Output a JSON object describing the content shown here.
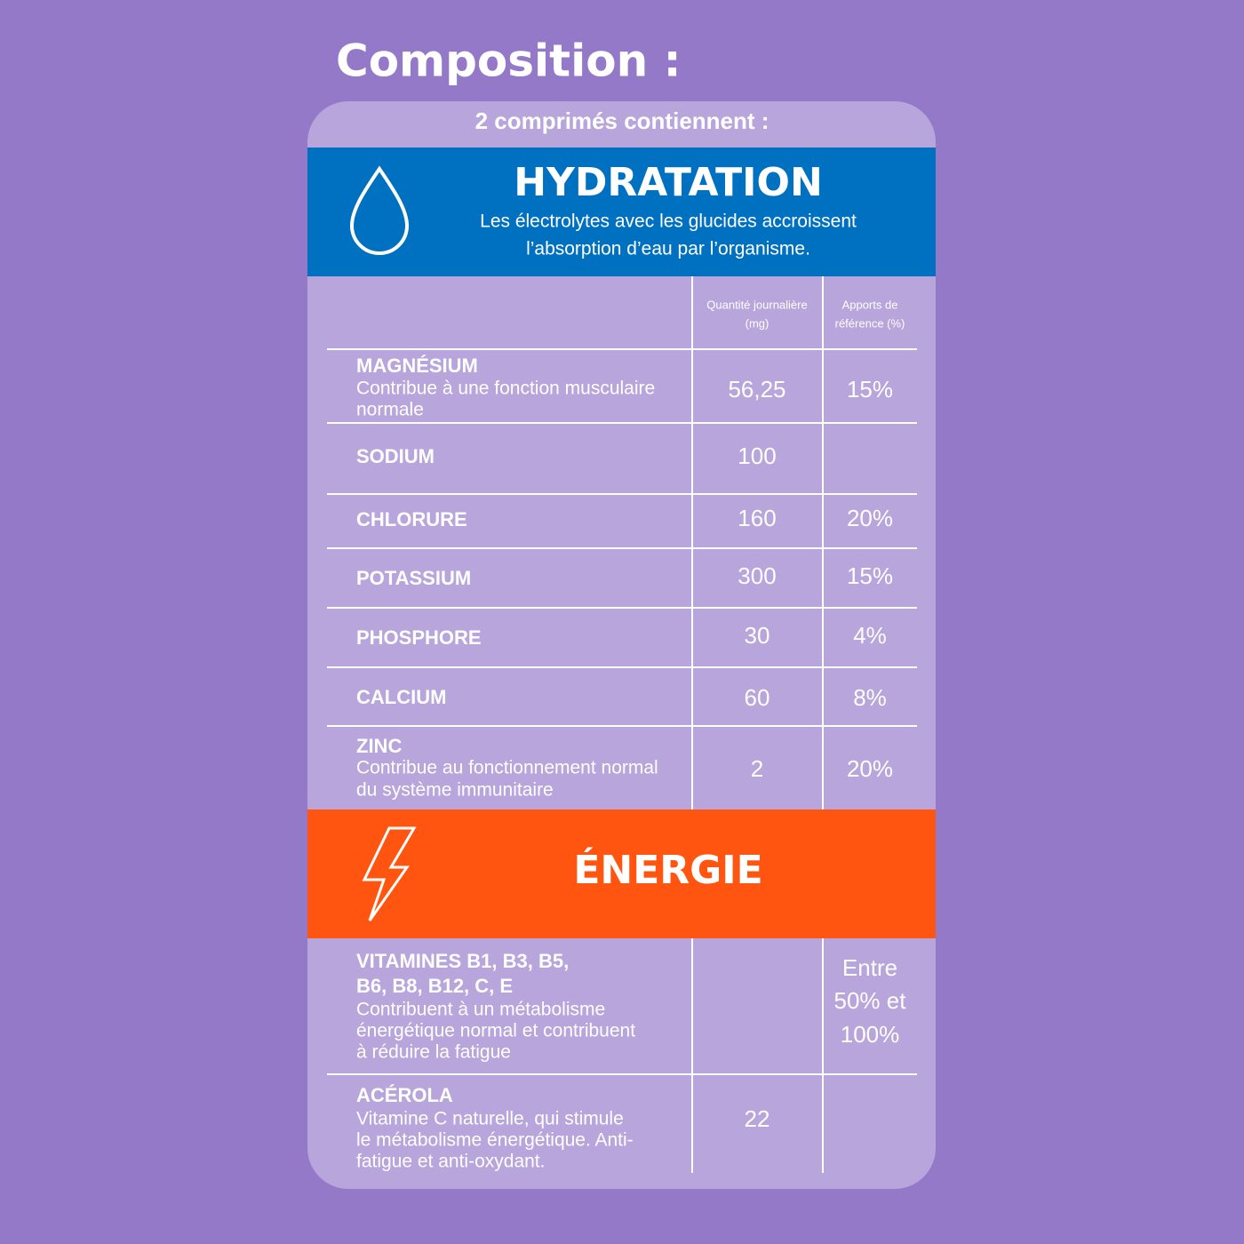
{
  "title": "Composition :",
  "card": {
    "subtitle": "2 comprimés contiennent :",
    "hydratation": {
      "heading": "HYDRATATION",
      "description": [
        "Les électrolytes avec les glucides accroissent",
        "l’absorption d’eau par l’organisme."
      ],
      "columns": {
        "quantity": [
          "Quantité journalière",
          "(mg)"
        ],
        "reference": [
          "Apports de",
          "référence (%)"
        ]
      },
      "rows": [
        {
          "name": "MAGNÉSIUM",
          "description": [
            "Contribue à une fonction musculaire",
            "normale"
          ],
          "quantity": "56,25",
          "reference": "15%"
        },
        {
          "name": "SODIUM",
          "quantity": "100"
        },
        {
          "name": "CHLORURE",
          "quantity": "160",
          "reference": "20%"
        },
        {
          "name": "POTASSIUM",
          "quantity": "300",
          "reference": "15%"
        },
        {
          "name": "PHOSPHORE",
          "quantity": "30",
          "reference": "4%"
        },
        {
          "name": "CALCIUM",
          "quantity": "60",
          "reference": "8%"
        },
        {
          "name": "ZINC",
          "description": [
            "Contribue au fonctionnement normal",
            "du système immunitaire"
          ],
          "quantity": "2",
          "reference": "20%"
        }
      ]
    },
    "energie": {
      "heading": "ÉNERGIE",
      "rows": [
        {
          "name": [
            "VITAMINES B1, B3, B5,",
            "B6, B8, B12, C, E"
          ],
          "description": [
            "Contribuent à un métabolisme",
            "énergétique normal et contribuent",
            "à réduire la fatigue"
          ],
          "reference": [
            "Entre",
            "50% et",
            "100%"
          ]
        },
        {
          "name": "ACÉROLA",
          "description": [
            "Vitamine C naturelle, qui stimule",
            "le métabolisme énergétique. Anti-",
            "fatigue et anti-oxydant."
          ],
          "quantity": "22"
        }
      ]
    }
  }
}
